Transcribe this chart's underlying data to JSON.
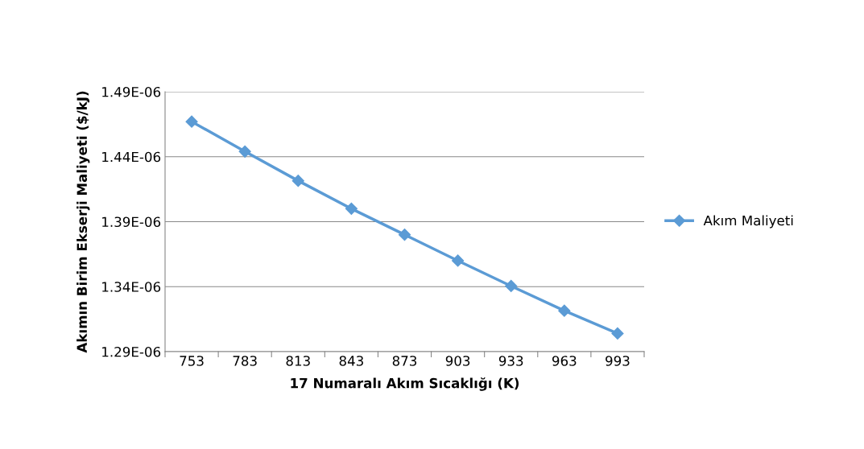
{
  "chart_data": {
    "type": "line",
    "xlabel": "17 Numaralı Akım Sıcaklığı (K)",
    "ylabel": "Akımın Birim Ekserji Maliyeti ($/kJ)",
    "categories": [
      "753",
      "783",
      "813",
      "843",
      "873",
      "903",
      "933",
      "963",
      "993"
    ],
    "series": [
      {
        "name": "Akım Maliyeti",
        "color": "#5b9bd5",
        "values": [
          1.467e-06,
          1.444e-06,
          1.4215e-06,
          1.4e-06,
          1.38e-06,
          1.36e-06,
          1.3405e-06,
          1.3215e-06,
          1.304e-06
        ]
      }
    ],
    "ylim": [
      1.29e-06,
      1.49e-06
    ],
    "yticks": [
      {
        "value": 1.29e-06,
        "label": "1.29E-06"
      },
      {
        "value": 1.34e-06,
        "label": "1.34E-06"
      },
      {
        "value": 1.39e-06,
        "label": "1.39E-06"
      },
      {
        "value": 1.44e-06,
        "label": "1.44E-06"
      },
      {
        "value": 1.49e-06,
        "label": "1.49E-06"
      }
    ],
    "grid": "y",
    "legend": "right",
    "marker": "diamond",
    "line_style": "solid"
  }
}
